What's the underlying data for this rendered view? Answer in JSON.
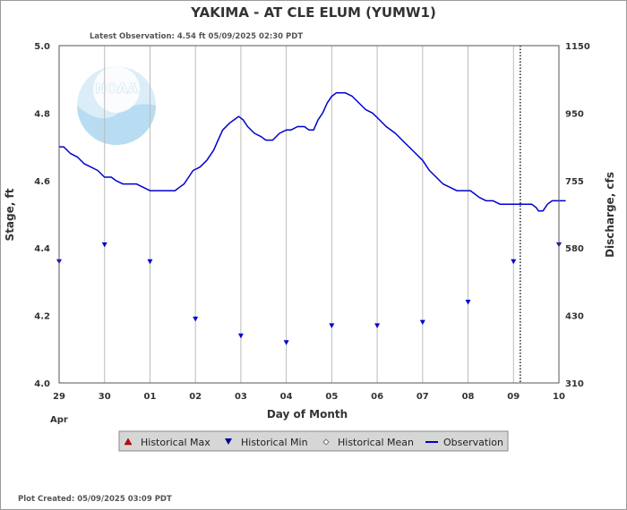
{
  "chart_data": {
    "type": "line",
    "title": "YAKIMA - AT CLE ELUM  (YUMW1)",
    "subtitle": "Latest Observation: 4.54 ft 05/09/2025 02:30 PDT",
    "footer": "Plot Created: 05/09/2025 03:09 PDT",
    "xlabel": "Day of Month",
    "xlabel_month": "Apr",
    "ylabel_left": "Stage, ft",
    "ylabel_right": "Discharge, cfs",
    "xlim": [
      0,
      11
    ],
    "ylim": [
      4.0,
      5.0
    ],
    "x_tick_values": [
      0,
      1,
      2,
      3,
      4,
      5,
      6,
      7,
      8,
      9,
      10,
      11
    ],
    "x_tick_labels": [
      "29",
      "30",
      "01",
      "02",
      "03",
      "04",
      "05",
      "06",
      "07",
      "08",
      "09",
      "10"
    ],
    "y_ticks_left": [
      {
        "value": 4.0,
        "label": "4.0"
      },
      {
        "value": 4.2,
        "label": "4.2"
      },
      {
        "value": 4.4,
        "label": "4.4"
      },
      {
        "value": 4.6,
        "label": "4.6"
      },
      {
        "value": 4.8,
        "label": "4.8"
      },
      {
        "value": 5.0,
        "label": "5.0"
      }
    ],
    "y_ticks_right": [
      {
        "stage": 4.0,
        "label": "310"
      },
      {
        "stage": 4.2,
        "label": "430"
      },
      {
        "stage": 4.4,
        "label": "580"
      },
      {
        "stage": 4.6,
        "label": "755"
      },
      {
        "stage": 4.8,
        "label": "950"
      },
      {
        "stage": 5.0,
        "label": "1150"
      }
    ],
    "grid": true,
    "latest_observation_x": 10.15,
    "series": [
      {
        "name": "Observation",
        "color": "#0000cc",
        "points": [
          [
            0.0,
            4.7
          ],
          [
            0.1,
            4.7
          ],
          [
            0.25,
            4.68
          ],
          [
            0.4,
            4.67
          ],
          [
            0.55,
            4.65
          ],
          [
            0.7,
            4.64
          ],
          [
            0.85,
            4.63
          ],
          [
            1.0,
            4.61
          ],
          [
            1.15,
            4.61
          ],
          [
            1.25,
            4.6
          ],
          [
            1.4,
            4.59
          ],
          [
            1.55,
            4.59
          ],
          [
            1.7,
            4.59
          ],
          [
            1.85,
            4.58
          ],
          [
            2.0,
            4.57
          ],
          [
            2.2,
            4.57
          ],
          [
            2.4,
            4.57
          ],
          [
            2.55,
            4.57
          ],
          [
            2.65,
            4.58
          ],
          [
            2.75,
            4.59
          ],
          [
            2.85,
            4.61
          ],
          [
            2.95,
            4.63
          ],
          [
            3.1,
            4.64
          ],
          [
            3.25,
            4.66
          ],
          [
            3.4,
            4.69
          ],
          [
            3.5,
            4.72
          ],
          [
            3.6,
            4.75
          ],
          [
            3.75,
            4.77
          ],
          [
            3.85,
            4.78
          ],
          [
            3.95,
            4.79
          ],
          [
            4.05,
            4.78
          ],
          [
            4.15,
            4.76
          ],
          [
            4.3,
            4.74
          ],
          [
            4.45,
            4.73
          ],
          [
            4.55,
            4.72
          ],
          [
            4.7,
            4.72
          ],
          [
            4.85,
            4.74
          ],
          [
            5.0,
            4.75
          ],
          [
            5.1,
            4.75
          ],
          [
            5.25,
            4.76
          ],
          [
            5.4,
            4.76
          ],
          [
            5.5,
            4.75
          ],
          [
            5.6,
            4.75
          ],
          [
            5.7,
            4.78
          ],
          [
            5.8,
            4.8
          ],
          [
            5.9,
            4.83
          ],
          [
            6.0,
            4.85
          ],
          [
            6.1,
            4.86
          ],
          [
            6.2,
            4.86
          ],
          [
            6.3,
            4.86
          ],
          [
            6.45,
            4.85
          ],
          [
            6.6,
            4.83
          ],
          [
            6.75,
            4.81
          ],
          [
            6.9,
            4.8
          ],
          [
            7.05,
            4.78
          ],
          [
            7.2,
            4.76
          ],
          [
            7.4,
            4.74
          ],
          [
            7.55,
            4.72
          ],
          [
            7.7,
            4.7
          ],
          [
            7.85,
            4.68
          ],
          [
            8.0,
            4.66
          ],
          [
            8.15,
            4.63
          ],
          [
            8.3,
            4.61
          ],
          [
            8.45,
            4.59
          ],
          [
            8.6,
            4.58
          ],
          [
            8.75,
            4.57
          ],
          [
            8.9,
            4.57
          ],
          [
            9.05,
            4.57
          ],
          [
            9.15,
            4.56
          ],
          [
            9.25,
            4.55
          ],
          [
            9.4,
            4.54
          ],
          [
            9.55,
            4.54
          ],
          [
            9.7,
            4.53
          ],
          [
            9.85,
            4.53
          ],
          [
            10.0,
            4.53
          ],
          [
            10.15,
            4.53
          ],
          [
            10.3,
            4.53
          ],
          [
            10.4,
            4.53
          ],
          [
            10.5,
            4.52
          ],
          [
            10.55,
            4.51
          ],
          [
            10.65,
            4.51
          ],
          [
            10.75,
            4.53
          ],
          [
            10.85,
            4.54
          ],
          [
            10.95,
            4.54
          ],
          [
            11.05,
            4.54
          ],
          [
            11.15,
            4.54
          ]
        ]
      },
      {
        "name": "Historical Min",
        "color": "#0000cc",
        "points": [
          [
            0,
            4.36
          ],
          [
            1,
            4.41
          ],
          [
            2,
            4.36
          ],
          [
            3,
            4.19
          ],
          [
            4,
            4.14
          ],
          [
            5,
            4.12
          ],
          [
            6,
            4.17
          ],
          [
            7,
            4.17
          ],
          [
            8,
            4.18
          ],
          [
            9,
            4.24
          ],
          [
            10,
            4.36
          ],
          [
            11,
            4.41
          ]
        ]
      }
    ],
    "legend": {
      "position": "bottom",
      "items": [
        {
          "label": "Historical Max",
          "symbol": "triangle-up",
          "color": "#cc0000"
        },
        {
          "label": "Historical Min",
          "symbol": "triangle-down",
          "color": "#000099"
        },
        {
          "label": "Historical Mean",
          "symbol": "diamond",
          "color": "#999999"
        },
        {
          "label": "Observation",
          "symbol": "line",
          "color": "#0000cc"
        }
      ]
    },
    "logo_text": "NOAA"
  }
}
